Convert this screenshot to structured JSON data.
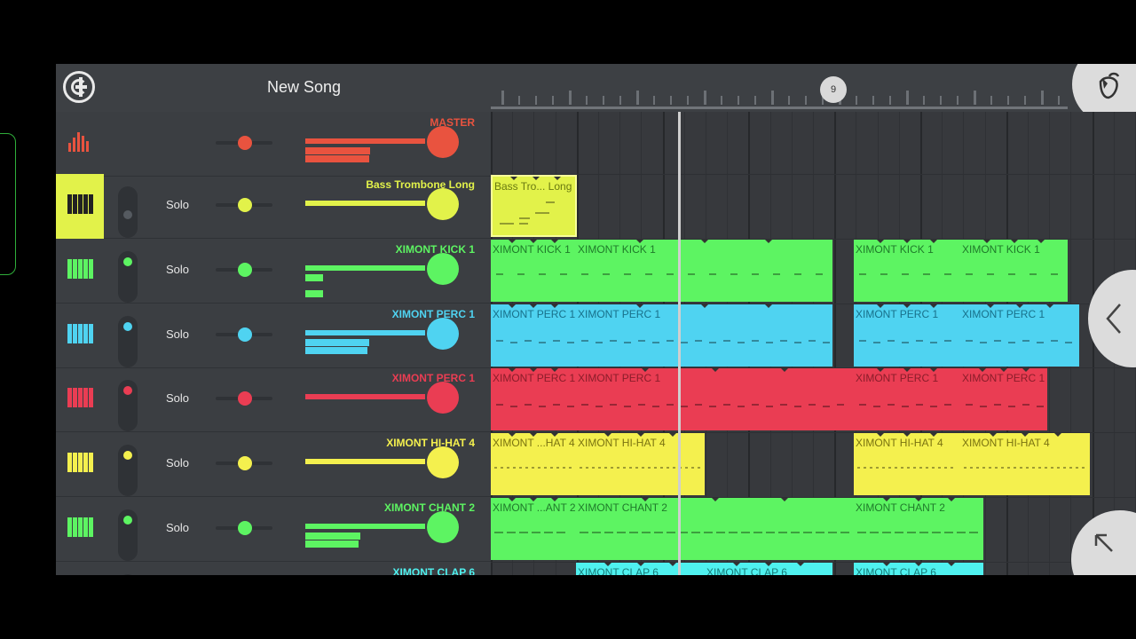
{
  "app": {
    "title": "New Song",
    "playhead_marker": "9"
  },
  "solo_label": "Solo",
  "tracks": [
    {
      "name": "MASTER",
      "color": "#e9533f",
      "icon": "mixer-icon"
    },
    {
      "name": "Bass Trombone Long",
      "color": "#e2f24a",
      "icon": "piano-keys-icon",
      "selected": true
    },
    {
      "name": "XIMONT KICK 1",
      "color": "#5df462",
      "icon": "piano-keys-icon"
    },
    {
      "name": "XIMONT PERC 1",
      "color": "#4fd3f1",
      "icon": "piano-keys-icon"
    },
    {
      "name": "XIMONT PERC 1",
      "color": "#ea3d53",
      "icon": "piano-keys-icon"
    },
    {
      "name": "XIMONT HI-HAT 4",
      "color": "#f4f04e",
      "icon": "piano-keys-icon"
    },
    {
      "name": "XIMONT CHANT 2",
      "color": "#5df462",
      "icon": "piano-keys-icon"
    },
    {
      "name": "XIMONT CLAP 6",
      "color": "#4ff1ef",
      "icon": "piano-keys-icon"
    }
  ],
  "clips": {
    "bass": [
      "Bass Tro... Long"
    ],
    "kick": [
      "XIMONT KICK 1",
      "XIMONT KICK 1",
      "XIMONT KICK 1",
      "XIMONT KICK 1"
    ],
    "perc_blue": [
      "XIMONT PERC 1",
      "XIMONT PERC 1",
      "XIMONT PERC 1",
      "XIMONT PERC 1"
    ],
    "perc_red": [
      "XIMONT PERC 1",
      "XIMONT PERC 1",
      "XIMONT PERC 1",
      "XIMONT PERC 1"
    ],
    "hihat": [
      "XIMONT ...HAT 4",
      "XIMONT HI-HAT 4",
      "XIMONT HI-HAT 4",
      "XIMONT HI-HAT 4"
    ],
    "chant": [
      "XIMONT ...ANT 2",
      "XIMONT CHANT 2",
      "XIMONT CHANT 2"
    ],
    "clap": [
      "XIMONT CLAP 6",
      "XIMONT CLAP 6",
      "XIMONT CLAP 6"
    ]
  }
}
